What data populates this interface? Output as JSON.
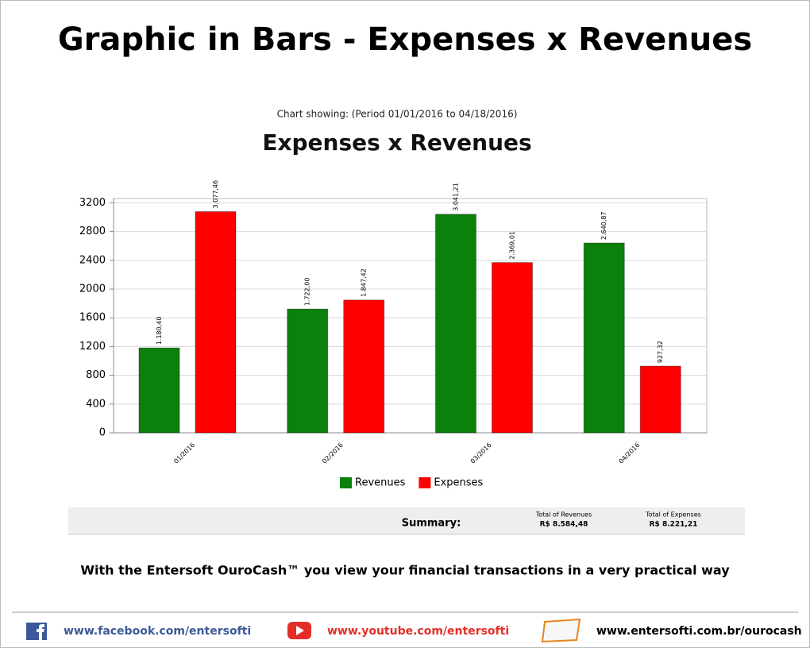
{
  "header": {
    "title": "Graphic in Bars - Expenses x Revenues"
  },
  "chart_data": {
    "type": "bar",
    "subtitle": "Chart showing: (Period 01/01/2016 to 04/18/2016)",
    "title": "Expenses x Revenues",
    "categories": [
      "01/2016",
      "02/2016",
      "03/2016",
      "04/2016"
    ],
    "series": [
      {
        "name": "Revenues",
        "color": "#0b800b",
        "values": [
          1180.4,
          1722.0,
          3041.21,
          2640.87
        ],
        "value_labels": [
          "1.180,40",
          "1.722,00",
          "3.041,21",
          "2.640,87"
        ]
      },
      {
        "name": "Expenses",
        "color": "#ff0000",
        "values": [
          3077.46,
          1847.42,
          2369.01,
          927.32
        ],
        "value_labels": [
          "3.077,46",
          "1.847,42",
          "2.369,01",
          "927,32"
        ]
      }
    ],
    "ylim": [
      0,
      3260
    ],
    "yticks": [
      0,
      400,
      800,
      1200,
      1600,
      2000,
      2400,
      2800,
      3200
    ],
    "grid": true,
    "legend": "bottom"
  },
  "summary": {
    "label": "Summary:",
    "revenues_title": "Total of Revenues",
    "revenues_total": "R$ 8.584,48",
    "expenses_title": "Total of Expenses",
    "expenses_total": "R$ 8.221,21"
  },
  "tagline": "With the Entersoft OuroCash™ you view your financial transactions in a very practical way",
  "footer": {
    "facebook": "www.facebook.com/entersofti",
    "youtube": "www.youtube.com/entersofti",
    "site": "www.entersofti.com.br/ourocash"
  }
}
